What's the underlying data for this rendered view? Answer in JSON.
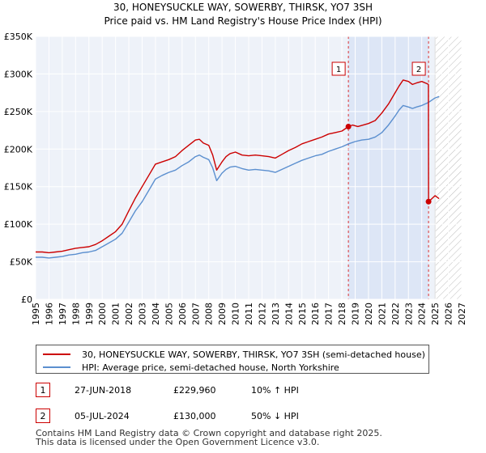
{
  "chart_data": {
    "type": "line",
    "title": "30, HONEYSUCKLE WAY, SOWERBY, THIRSK, YO7 3SH",
    "subtitle": "Price paid vs. HM Land Registry's House Price Index (HPI)",
    "xlim": [
      1995,
      2027
    ],
    "ylim": [
      0,
      350000
    ],
    "x_ticks": [
      1995,
      1996,
      1997,
      1998,
      1999,
      2000,
      2001,
      2002,
      2003,
      2004,
      2005,
      2006,
      2007,
      2008,
      2009,
      2010,
      2011,
      2012,
      2013,
      2014,
      2015,
      2016,
      2017,
      2018,
      2019,
      2020,
      2021,
      2022,
      2023,
      2024,
      2025,
      2026,
      2027
    ],
    "x_tick_labels": [
      "1995",
      "1996",
      "1997",
      "1998",
      "1999",
      "2000",
      "2001",
      "2002",
      "2003",
      "2004",
      "2005",
      "2006",
      "2007",
      "2008",
      "2009",
      "2010",
      "2011",
      "2012",
      "2013",
      "2014",
      "2015",
      "2016",
      "2017",
      "2018",
      "2019",
      "2020",
      "2021",
      "2022",
      "2023",
      "2024",
      "2025",
      "2026",
      "2027"
    ],
    "y_ticks": [
      0,
      50000,
      100000,
      150000,
      200000,
      250000,
      300000,
      350000
    ],
    "y_tick_labels": [
      "£0",
      "£50K",
      "£100K",
      "£150K",
      "£200K",
      "£250K",
      "£300K",
      "£350K"
    ],
    "grid": true,
    "projection_start": 2025.0,
    "shaded_region": [
      2018.49,
      2024.51
    ],
    "series": [
      {
        "name": "30, HONEYSUCKLE WAY, SOWERBY, THIRSK, YO7 3SH (semi-detached house)",
        "color": "#cc0000",
        "x": [
          1995.0,
          1995.5,
          1996.0,
          1996.5,
          1997.0,
          1997.5,
          1998.0,
          1998.5,
          1999.0,
          1999.5,
          2000.0,
          2000.5,
          2001.0,
          2001.5,
          2002.0,
          2002.5,
          2003.0,
          2003.5,
          2004.0,
          2004.5,
          2005.0,
          2005.5,
          2006.0,
          2006.5,
          2007.0,
          2007.3,
          2007.6,
          2008.0,
          2008.3,
          2008.6,
          2009.0,
          2009.3,
          2009.6,
          2010.0,
          2010.5,
          2011.0,
          2011.5,
          2012.0,
          2012.5,
          2013.0,
          2013.5,
          2014.0,
          2014.5,
          2015.0,
          2015.5,
          2016.0,
          2016.5,
          2017.0,
          2017.5,
          2018.0,
          2018.49,
          2018.8,
          2019.2,
          2019.6,
          2020.0,
          2020.5,
          2021.0,
          2021.5,
          2022.0,
          2022.3,
          2022.6,
          2023.0,
          2023.3,
          2023.6,
          2024.0,
          2024.4,
          2024.5,
          2024.51,
          2024.7,
          2025.0,
          2025.3
        ],
        "values": [
          63000,
          63000,
          62000,
          63000,
          64000,
          66000,
          68000,
          69000,
          70000,
          73000,
          78000,
          84000,
          90000,
          100000,
          118000,
          135000,
          150000,
          165000,
          180000,
          183000,
          186000,
          190000,
          198000,
          205000,
          212000,
          213000,
          208000,
          205000,
          192000,
          172000,
          183000,
          190000,
          194000,
          196000,
          192000,
          191000,
          192000,
          191000,
          190000,
          188000,
          193000,
          198000,
          202000,
          207000,
          210000,
          213000,
          216000,
          220000,
          222000,
          224000,
          229960,
          232000,
          230000,
          232000,
          234000,
          238000,
          248000,
          260000,
          275000,
          284000,
          292000,
          290000,
          286000,
          288000,
          290000,
          287000,
          286000,
          130000,
          133000,
          138000,
          134000
        ]
      },
      {
        "name": "HPI: Average price, semi-detached house, North Yorkshire",
        "color": "#5b8fcf",
        "x": [
          1995.0,
          1995.5,
          1996.0,
          1996.5,
          1997.0,
          1997.5,
          1998.0,
          1998.5,
          1999.0,
          1999.5,
          2000.0,
          2000.5,
          2001.0,
          2001.5,
          2002.0,
          2002.5,
          2003.0,
          2003.5,
          2004.0,
          2004.5,
          2005.0,
          2005.5,
          2006.0,
          2006.5,
          2007.0,
          2007.3,
          2007.6,
          2008.0,
          2008.3,
          2008.6,
          2009.0,
          2009.3,
          2009.6,
          2010.0,
          2010.5,
          2011.0,
          2011.5,
          2012.0,
          2012.5,
          2013.0,
          2013.5,
          2014.0,
          2014.5,
          2015.0,
          2015.5,
          2016.0,
          2016.5,
          2017.0,
          2017.5,
          2018.0,
          2018.5,
          2019.0,
          2019.5,
          2020.0,
          2020.5,
          2021.0,
          2021.5,
          2022.0,
          2022.3,
          2022.6,
          2023.0,
          2023.3,
          2023.6,
          2024.0,
          2024.5,
          2025.0,
          2025.3
        ],
        "values": [
          56000,
          56000,
          55000,
          56000,
          57000,
          59000,
          60000,
          62000,
          63000,
          65000,
          70000,
          75000,
          80000,
          88000,
          103000,
          118000,
          130000,
          145000,
          160000,
          165000,
          169000,
          172000,
          178000,
          183000,
          190000,
          192000,
          189000,
          186000,
          175000,
          158000,
          168000,
          173000,
          176000,
          177000,
          174000,
          172000,
          173000,
          172000,
          171000,
          169000,
          173000,
          177000,
          181000,
          185000,
          188000,
          191000,
          193000,
          197000,
          200000,
          203000,
          207000,
          210000,
          212000,
          213000,
          216000,
          222000,
          232000,
          244000,
          252000,
          258000,
          256000,
          254000,
          256000,
          258000,
          262000,
          268000,
          270000
        ]
      }
    ],
    "transactions": [
      {
        "label": "1",
        "x": 2018.49,
        "value": 229960
      },
      {
        "label": "2",
        "x": 2024.51,
        "value": 130000
      }
    ]
  },
  "legend": {
    "property_label": "30, HONEYSUCKLE WAY, SOWERBY, THIRSK, YO7 3SH (semi-detached house)",
    "hpi_label": "HPI: Average price, semi-detached house, North Yorkshire",
    "property_color": "#cc0000",
    "hpi_color": "#5b8fcf"
  },
  "transactions_table": [
    {
      "num": "1",
      "date": "27-JUN-2018",
      "price": "£229,960",
      "hpi": "10% ↑ HPI"
    },
    {
      "num": "2",
      "date": "05-JUL-2024",
      "price": "£130,000",
      "hpi": "50% ↓ HPI"
    }
  ],
  "footer": {
    "line1": "Contains HM Land Registry data © Crown copyright and database right 2025.",
    "line2": "This data is licensed under the Open Government Licence v3.0."
  }
}
